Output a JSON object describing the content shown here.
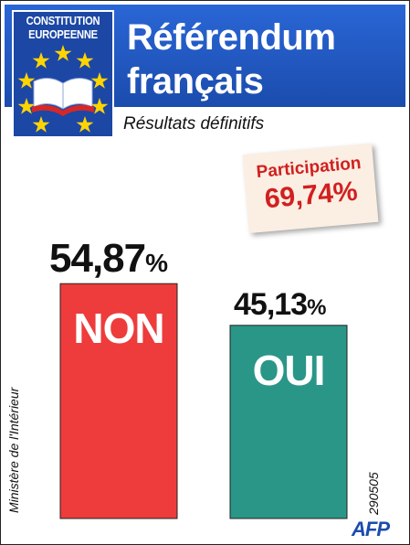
{
  "header": {
    "badge_line1": "CONSTITUTION",
    "badge_line2": "EUROPEENNE",
    "title_line1": "Référendum",
    "title_line2": "français",
    "subtitle": "Résultats définitifs"
  },
  "participation": {
    "label": "Participation",
    "value": "69,74%"
  },
  "source": "Ministère de l'Intérieur",
  "date_code": "290505",
  "agency": "AFP",
  "colors": {
    "header_blue": "#1b4cad",
    "non_red": "#ee3b3b",
    "oui_teal": "#2a9687",
    "participation_red": "#d1201f"
  },
  "chart_data": {
    "type": "bar",
    "categories": [
      "NON",
      "OUI"
    ],
    "values": [
      54.87,
      45.13
    ],
    "value_labels": [
      "54,87",
      "45,13"
    ],
    "unit": "%",
    "colors": [
      "#ee3b3b",
      "#2a9687"
    ],
    "title": "Référendum français",
    "subtitle": "Résultats définitifs"
  }
}
